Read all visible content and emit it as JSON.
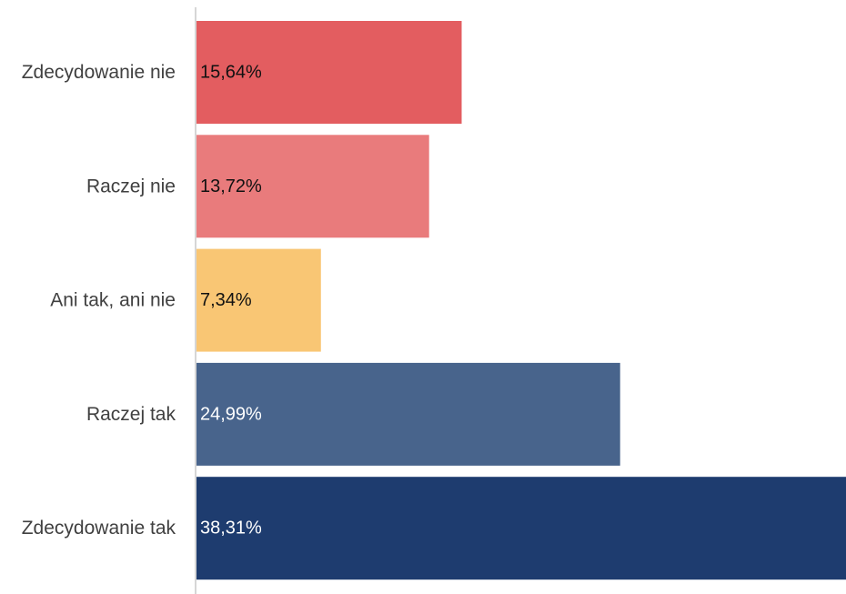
{
  "chart_data": {
    "type": "bar",
    "orientation": "horizontal",
    "categories": [
      "Zdecydowanie nie",
      "Raczej nie",
      "Ani tak, ani nie",
      "Raczej tak",
      "Zdecydowanie tak"
    ],
    "values": [
      15.64,
      13.72,
      7.34,
      24.99,
      38.31
    ],
    "value_labels": [
      "15,64%",
      "13,72%",
      "7,34%",
      "24,99%",
      "38,31%"
    ],
    "unit": "%",
    "title": "",
    "xlabel": "",
    "ylabel": "",
    "xlim": [
      0,
      38.31
    ],
    "grid": false,
    "legend": "none",
    "colors": [
      "#e35d60",
      "#e97b7c",
      "#f9c674",
      "#48648c",
      "#1e3c6f"
    ],
    "label_colors": [
      "#111111",
      "#111111",
      "#111111",
      "#ffffff",
      "#ffffff"
    ]
  }
}
